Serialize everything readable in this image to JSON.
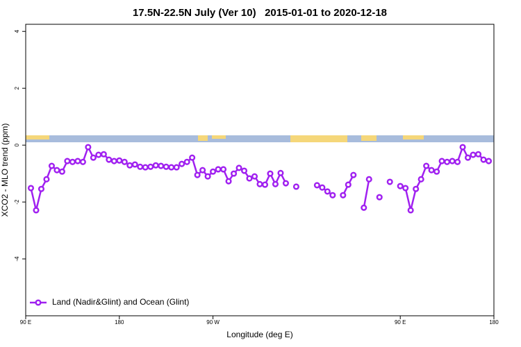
{
  "chart_data": {
    "type": "line",
    "title": "17.5N-22.5N July (Ver 10)   2015-01-01 to 2020-12-18",
    "x_label": "Longitude (deg E)",
    "y_label": "XCO2 - MLO trend (ppm)",
    "xlim": [
      90,
      540
    ],
    "ylim": [
      -6,
      4.25
    ],
    "xticks": [
      {
        "value": 90,
        "label": "90 E"
      },
      180,
      {
        "value": 270,
        "label": "90 W"
      },
      {
        "value": 450,
        "label": "90 E"
      },
      {
        "value": 540,
        "label": "180"
      }
    ],
    "yticks": [
      -4,
      -2,
      0,
      2,
      4
    ],
    "legend": "bottom-left",
    "x": [
      95,
      100,
      105,
      110,
      115,
      120,
      125,
      130,
      135,
      140,
      145,
      150,
      155,
      160,
      165,
      170,
      175,
      180,
      185,
      190,
      195,
      200,
      205,
      210,
      215,
      220,
      225,
      230,
      235,
      240,
      245,
      250,
      255,
      260,
      265,
      270,
      275,
      280,
      285,
      290,
      295,
      300,
      305,
      310,
      315,
      320,
      325,
      330,
      335,
      340,
      345,
      350,
      355,
      360,
      365,
      370,
      375,
      380,
      385,
      390,
      395,
      400,
      405,
      410,
      415,
      420,
      425,
      430,
      435,
      440,
      445,
      450,
      455,
      460,
      465,
      470,
      475,
      480,
      485,
      490,
      495,
      500,
      505,
      510,
      515,
      520,
      525,
      530,
      535
    ],
    "series": [
      {
        "name": "Land (Nadir&Glint) and Ocean (Glint)",
        "color": "#a020f0",
        "values": [
          -1.51,
          -2.29,
          -1.54,
          -1.2,
          -0.73,
          -0.88,
          -0.93,
          -0.56,
          -0.59,
          -0.56,
          -0.59,
          -0.07,
          -0.44,
          -0.34,
          -0.32,
          -0.51,
          -0.56,
          -0.54,
          -0.59,
          -0.71,
          -0.68,
          -0.76,
          -0.78,
          -0.76,
          -0.71,
          -0.73,
          -0.76,
          -0.78,
          -0.78,
          -0.66,
          -0.59,
          -0.44,
          -1.05,
          -0.88,
          -1.1,
          -0.93,
          -0.85,
          -0.85,
          -1.27,
          -1.0,
          -0.8,
          -0.9,
          -1.17,
          -1.1,
          -1.37,
          -1.39,
          -1.0,
          -1.37,
          -0.98,
          -1.34,
          null,
          -1.46,
          null,
          null,
          null,
          -1.41,
          -1.49,
          -1.63,
          -1.76,
          null,
          -1.76,
          -1.39,
          -1.05,
          null,
          -2.2,
          -1.2,
          null,
          -1.83,
          null,
          -1.29,
          null,
          -1.44,
          -1.51,
          -2.29,
          -1.54,
          -1.2,
          -0.73,
          -0.88,
          -0.93,
          -0.56,
          -0.59,
          -0.56,
          -0.59,
          -0.07,
          -0.44,
          -0.34,
          -0.32,
          -0.51,
          -0.56
        ]
      }
    ]
  }
}
